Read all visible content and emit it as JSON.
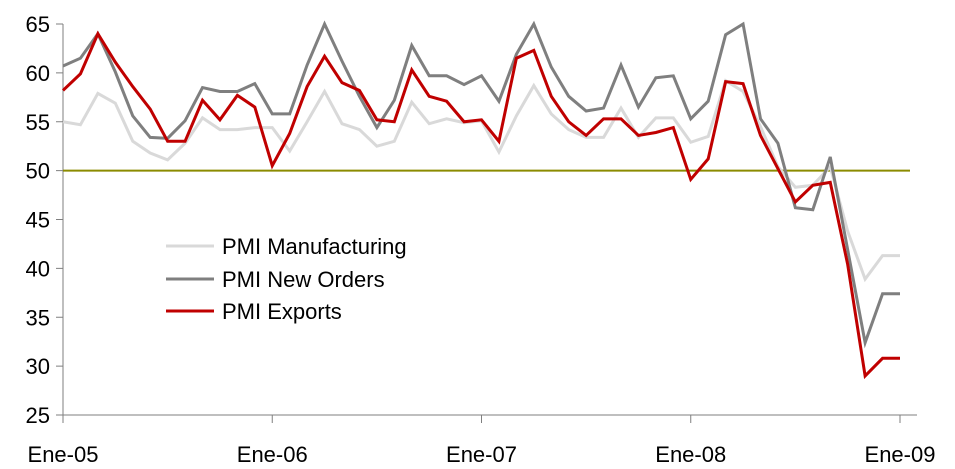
{
  "chart_data": {
    "type": "line",
    "title": "",
    "xlabel": "",
    "ylabel": "",
    "x_tick_labels": [
      "Ene-05",
      "Ene-06",
      "Ene-07",
      "Ene-08",
      "Ene-09"
    ],
    "x_tick_months": [
      0,
      12,
      24,
      36,
      48
    ],
    "x_range_months": [
      0,
      48
    ],
    "ylim": [
      25,
      65
    ],
    "y_ticks": [
      25,
      30,
      35,
      40,
      45,
      50,
      55,
      60,
      65
    ],
    "y_tick_labels": [
      "25",
      "30",
      "35",
      "40",
      "45",
      "50",
      "55",
      "60",
      "65"
    ],
    "reference_line": {
      "y": 50,
      "color": "#8B8B00"
    },
    "grid": false,
    "legend_position": "center-left",
    "series": [
      {
        "name": "PMI Manufacturing",
        "color": "#D9D9D9",
        "values": [
          55.0,
          54.7,
          57.9,
          56.9,
          53.0,
          51.8,
          51.1,
          52.8,
          55.4,
          54.2,
          54.2,
          54.4,
          54.4,
          52.0,
          55.0,
          58.1,
          54.8,
          54.2,
          52.5,
          53.0,
          57.0,
          54.8,
          55.3,
          54.9,
          55.1,
          51.9,
          55.6,
          58.7,
          55.8,
          54.2,
          53.4,
          53.4,
          56.4,
          53.4,
          55.4,
          55.4,
          52.9,
          53.5,
          59.2,
          58.1,
          54.5,
          50.4,
          48.3,
          48.5,
          50.4,
          43.8,
          38.9,
          41.3,
          41.3
        ]
      },
      {
        "name": "PMI New Orders",
        "color": "#7F7F7F",
        "values": [
          60.7,
          61.5,
          64.0,
          60.1,
          55.6,
          53.4,
          53.3,
          55.1,
          58.5,
          58.1,
          58.1,
          58.9,
          55.8,
          55.8,
          60.8,
          65.0,
          61.2,
          57.6,
          54.4,
          57.2,
          62.8,
          59.7,
          59.7,
          58.8,
          59.7,
          57.1,
          61.9,
          65.0,
          60.6,
          57.6,
          56.1,
          56.4,
          60.8,
          56.5,
          59.5,
          59.7,
          55.3,
          57.1,
          63.9,
          65.0,
          55.3,
          52.8,
          46.2,
          46.0,
          51.4,
          41.9,
          32.4,
          37.4,
          37.4
        ]
      },
      {
        "name": "PMI Exports",
        "color": "#C00000",
        "values": [
          58.2,
          59.9,
          64.0,
          61.1,
          58.6,
          56.3,
          53.0,
          53.0,
          57.2,
          55.2,
          57.7,
          56.5,
          50.5,
          53.8,
          58.6,
          61.7,
          59.0,
          58.2,
          55.2,
          55.0,
          60.3,
          57.6,
          57.1,
          55.0,
          55.2,
          53.0,
          61.5,
          62.3,
          57.6,
          55.0,
          53.6,
          55.3,
          55.3,
          53.6,
          53.9,
          54.4,
          49.1,
          51.2,
          59.1,
          58.9,
          53.6,
          50.2,
          46.8,
          48.5,
          48.8,
          40.4,
          29.0,
          30.8,
          30.8
        ]
      }
    ]
  }
}
